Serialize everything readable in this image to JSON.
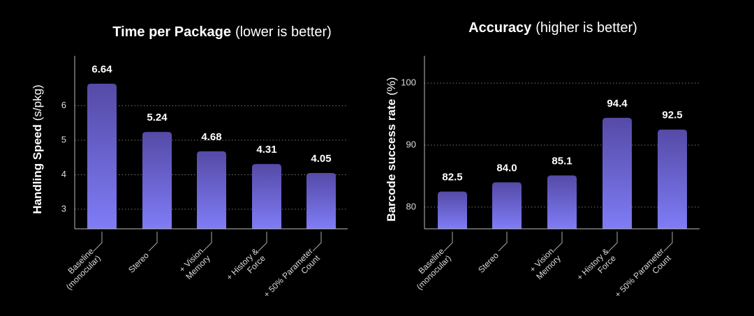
{
  "chart_data": [
    {
      "type": "bar",
      "title": "Time per Package",
      "subtitle": "(lower is better)",
      "ylabel": "Handling Speed",
      "ylabel_unit": "(s/pkg)",
      "categories": [
        [
          "Baseline",
          "(monocular)"
        ],
        [
          "Stereo"
        ],
        [
          "+ Vision",
          "Memory"
        ],
        [
          "+ History &",
          "Force"
        ],
        [
          "+ 50% Parameter",
          "Count"
        ]
      ],
      "values": [
        6.64,
        5.24,
        4.68,
        4.31,
        4.05
      ],
      "ylim": [
        2.43,
        7.45
      ],
      "yticks": [
        3,
        4,
        5,
        6
      ],
      "grid": true,
      "colors": [
        "#554aa6",
        "#7f7cf6"
      ]
    },
    {
      "type": "bar",
      "title": "Accuracy",
      "subtitle": "(higher is better)",
      "ylabel": "Barcode success rate",
      "ylabel_unit": "(%)",
      "categories": [
        [
          "Baseline",
          "(monocular)"
        ],
        [
          "Stereo"
        ],
        [
          "+ Vision",
          "Memory"
        ],
        [
          "+ History &",
          "Force"
        ],
        [
          "+ 50% Parameter",
          "Count"
        ]
      ],
      "values": [
        82.5,
        84.0,
        85.1,
        94.4,
        92.5
      ],
      "value_labels": [
        "82.5",
        "84.0",
        "85.1",
        "94.4",
        "92.5"
      ],
      "ylim": [
        76.5,
        104.4
      ],
      "yticks": [
        80,
        90,
        100
      ],
      "grid": true,
      "colors": [
        "#554aa6",
        "#7f7cf6"
      ]
    }
  ]
}
